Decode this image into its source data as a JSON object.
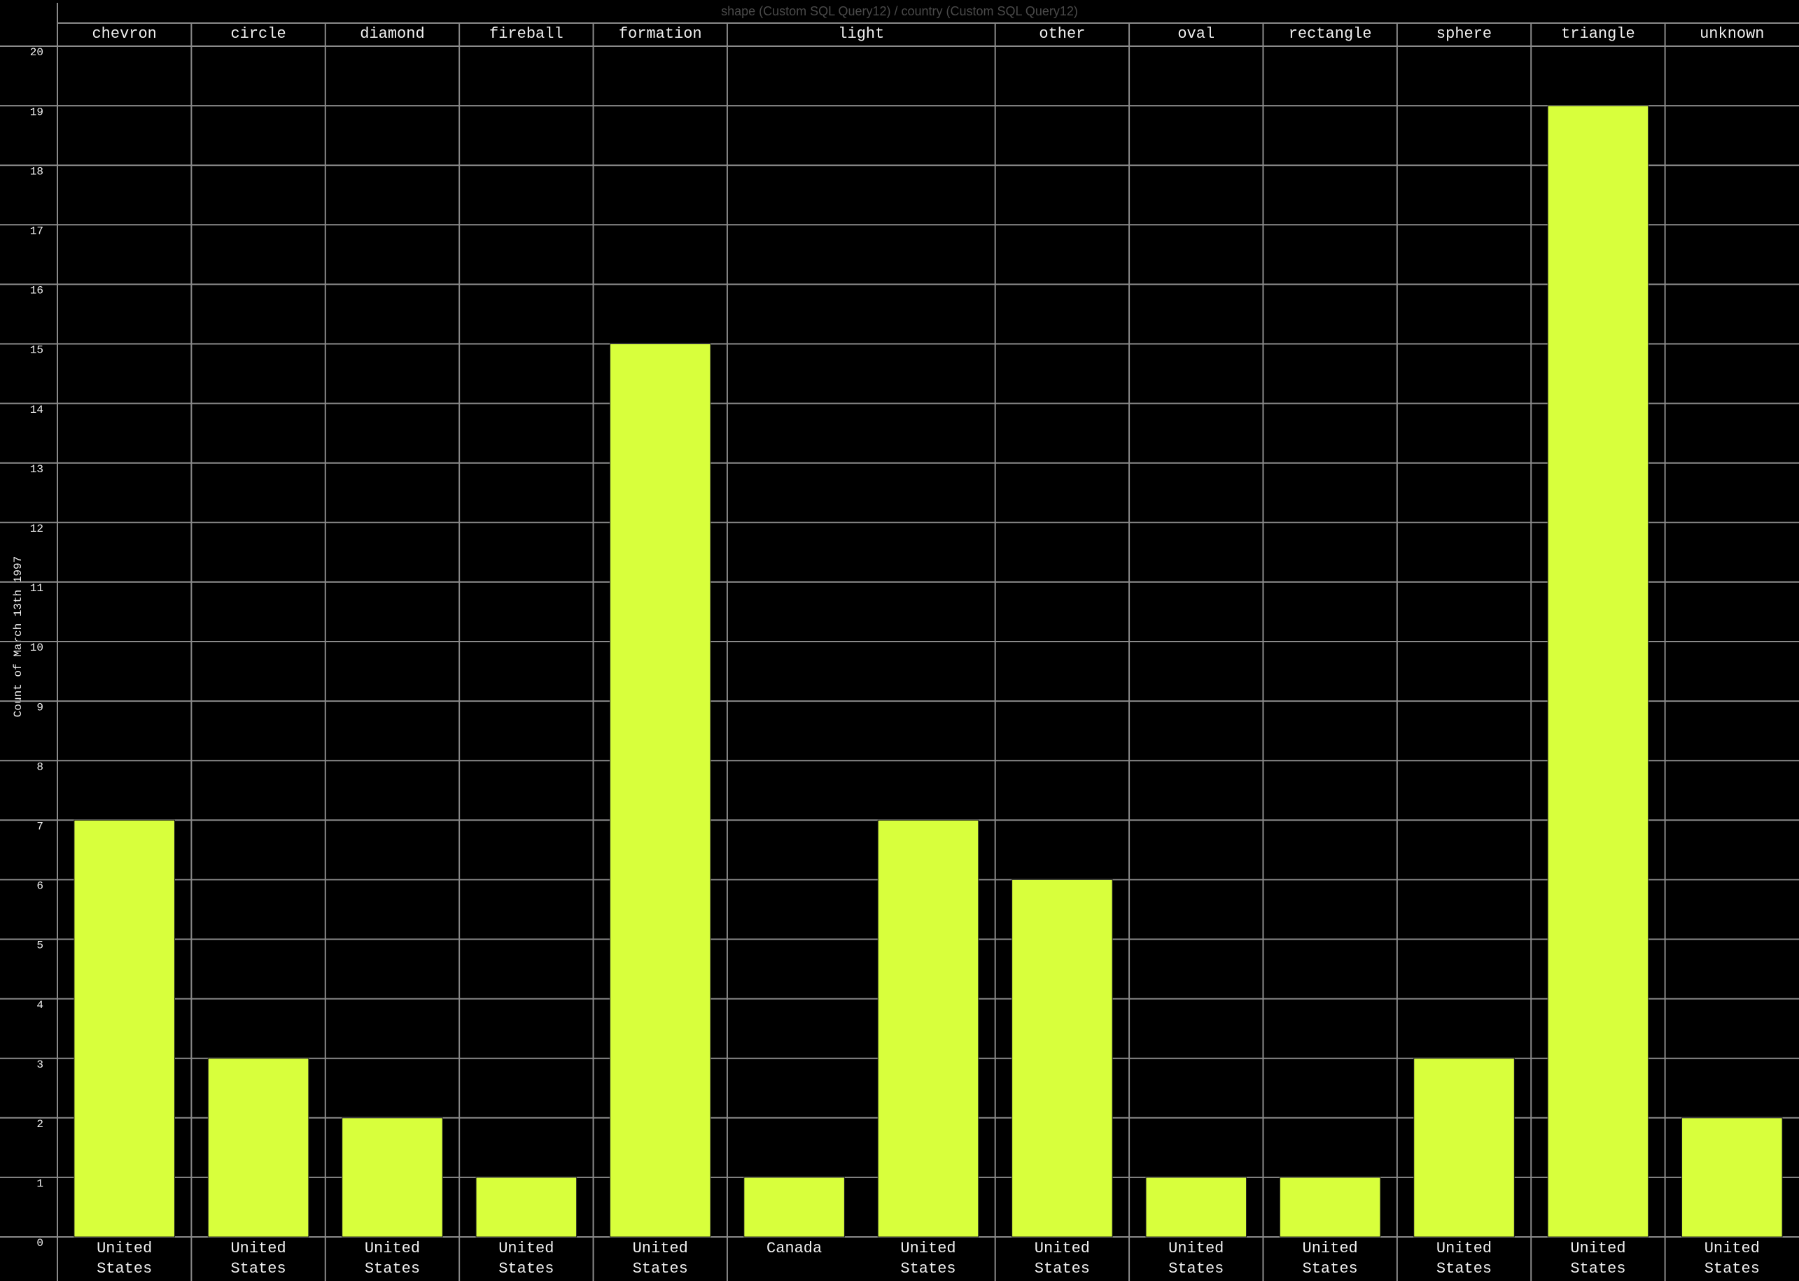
{
  "chart_data": {
    "type": "bar",
    "title": "shape (Custom SQL Query12) / country (Custom SQL Query12)",
    "y_label": "Count of March 13th 1997",
    "color": "#d8ff3c",
    "ylim": [
      0,
      20
    ],
    "yticks": [
      0,
      1,
      2,
      3,
      4,
      5,
      6,
      7,
      8,
      9,
      10,
      11,
      12,
      13,
      14,
      15,
      16,
      17,
      18,
      19,
      20
    ],
    "grid": true,
    "groups": [
      {
        "name": "chevron",
        "categories": [
          "United States"
        ],
        "values": [
          7
        ]
      },
      {
        "name": "circle",
        "categories": [
          "United States"
        ],
        "values": [
          3
        ]
      },
      {
        "name": "diamond",
        "categories": [
          "United States"
        ],
        "values": [
          2
        ]
      },
      {
        "name": "fireball",
        "categories": [
          "United States"
        ],
        "values": [
          1
        ]
      },
      {
        "name": "formation",
        "categories": [
          "United States"
        ],
        "values": [
          15
        ]
      },
      {
        "name": "light",
        "categories": [
          "Canada",
          "United States"
        ],
        "values": [
          1,
          7
        ]
      },
      {
        "name": "other",
        "categories": [
          "United States"
        ],
        "values": [
          6
        ]
      },
      {
        "name": "oval",
        "categories": [
          "United States"
        ],
        "values": [
          1
        ]
      },
      {
        "name": "rectangle",
        "categories": [
          "United States"
        ],
        "values": [
          1
        ]
      },
      {
        "name": "sphere",
        "categories": [
          "United States"
        ],
        "values": [
          3
        ]
      },
      {
        "name": "triangle",
        "categories": [
          "United States"
        ],
        "values": [
          19
        ]
      },
      {
        "name": "unknown",
        "categories": [
          "United States"
        ],
        "values": [
          2
        ]
      }
    ]
  }
}
